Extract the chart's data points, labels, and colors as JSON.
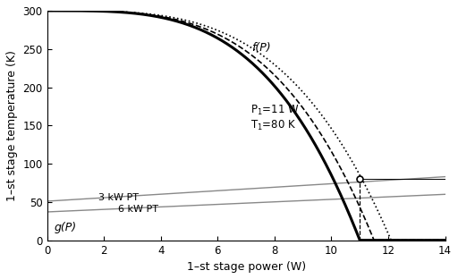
{
  "xlabel": "1–st stage power (W)",
  "ylabel": "1–st stage temperature (K)",
  "xlim": [
    0,
    14
  ],
  "ylim": [
    0,
    300
  ],
  "xticks": [
    0,
    2,
    4,
    6,
    8,
    10,
    12,
    14
  ],
  "yticks": [
    0,
    50,
    100,
    150,
    200,
    250,
    300
  ],
  "annotation_fP": "f(P)",
  "annotation_gP": "g(P)",
  "annotation_P1": "P$_1$=11 W\nT$_1$=80 K",
  "annotation_3kW": "3 kW PT",
  "annotation_6kW": "6 kW PT",
  "intersection_x": 11.0,
  "intersection_y": 80.0,
  "line_3kW": [
    51,
    83
  ],
  "line_6kW": [
    37,
    60
  ],
  "bg_color": "#ffffff",
  "mylar_zero": 11.0,
  "g10_zero": 11.5,
  "steel_zero": 12.1,
  "curve_exponent": 3.5
}
